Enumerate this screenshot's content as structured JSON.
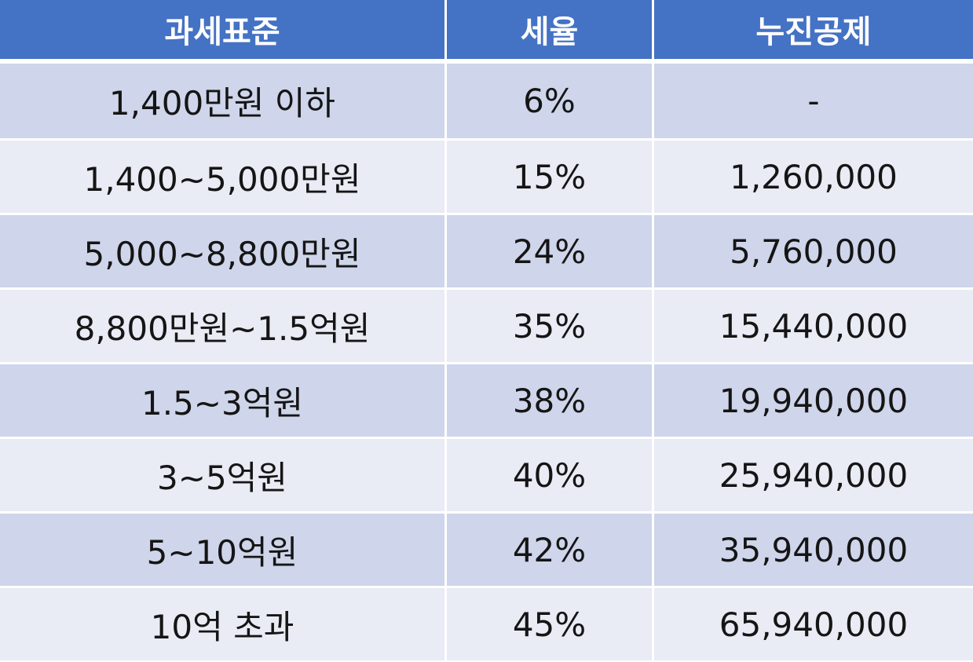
{
  "table": {
    "header_bg": "#4472c4",
    "row_colors": [
      "#cfd5ea",
      "#e9ebf5"
    ],
    "headers": [
      "과세표준",
      "세율",
      "누진공제"
    ],
    "rows": [
      [
        "1,400만원 이하",
        "6%",
        "-"
      ],
      [
        "1,400~5,000만원",
        "15%",
        "1,260,000"
      ],
      [
        "5,000~8,800만원",
        "24%",
        "5,760,000"
      ],
      [
        "8,800만원~1.5억원",
        "35%",
        "15,440,000"
      ],
      [
        "1.5~3억원",
        "38%",
        "19,940,000"
      ],
      [
        "3~5억원",
        "40%",
        "25,940,000"
      ],
      [
        "5~10억원",
        "42%",
        "35,940,000"
      ],
      [
        "10억 초과",
        "45%",
        "65,940,000"
      ]
    ]
  }
}
